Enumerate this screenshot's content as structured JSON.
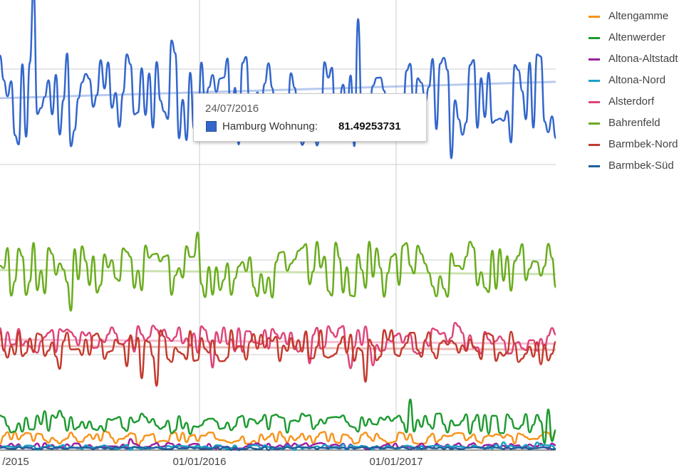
{
  "chart_data": {
    "type": "line",
    "grid": true,
    "legend_position": "right",
    "x_ticks": [
      "/2015",
      "01/01/2016",
      "01/01/2017"
    ],
    "series": [
      {
        "name": "Altengamme",
        "color": "#f7941d",
        "level": 6,
        "amp": 3,
        "seed": 3
      },
      {
        "name": "Altenwerder",
        "color": "#1e9a31",
        "level": 13,
        "amp": 5,
        "seed": 5
      },
      {
        "name": "Altona-Altstadt",
        "color": "#9a1f9f",
        "level": 2,
        "amp": 1.5,
        "seed": 7
      },
      {
        "name": "Altona-Nord",
        "color": "#1aa0c6",
        "level": 1.5,
        "amp": 1,
        "seed": 9
      },
      {
        "name": "Alsterdorf",
        "color": "#dd4477",
        "level": 54,
        "amp": 7,
        "seed": 11
      },
      {
        "name": "Bahrenfeld",
        "color": "#6aac1e",
        "level": 88,
        "amp": 14,
        "seed": 13
      },
      {
        "name": "Barmbek-Nord",
        "color": "#c43a2e",
        "level": 51,
        "amp": 8,
        "seed": 17
      },
      {
        "name": "Barmbek-Süd",
        "color": "#1f5f9a",
        "level": 1,
        "amp": 0.6,
        "seed": 19
      },
      {
        "name": "Hamburg Wohnung",
        "color": "#3366cc",
        "level": 172,
        "amp": 24,
        "seed": 23,
        "in_legend": false
      }
    ]
  },
  "tooltip": {
    "date": "24/07/2016",
    "series": "Hamburg Wohnung:",
    "value": "81.49253731",
    "color": "#3366cc"
  }
}
